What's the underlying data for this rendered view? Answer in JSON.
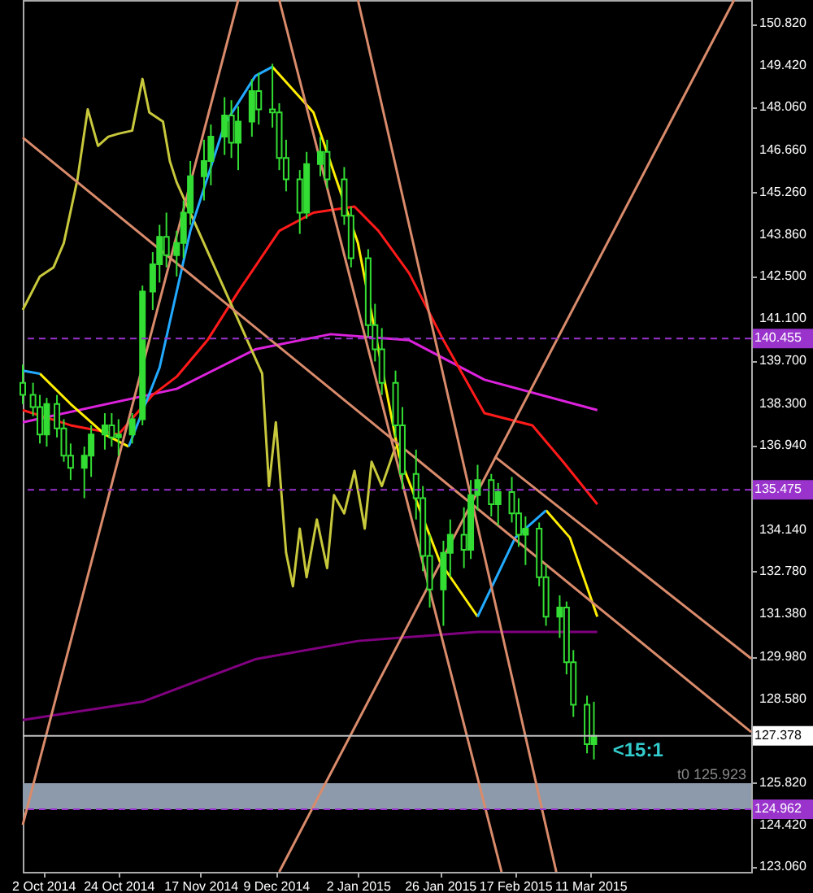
{
  "chart_data": {
    "type": "candlestick",
    "color": "#33dd33",
    "xlim": [
      "2014-09-26",
      "2015-04-27"
    ],
    "ylim": [
      122.9,
      151.6
    ],
    "xticks": [
      {
        "value": "2014-10-02",
        "label": "2 Oct 2014"
      },
      {
        "value": "2014-10-24",
        "label": "24 Oct 2014"
      },
      {
        "value": "2014-11-17",
        "label": "17 Nov 2014"
      },
      {
        "value": "2014-12-09",
        "label": "9 Dec 2014"
      },
      {
        "value": "2015-01-02",
        "label": "2 Jan 2015"
      },
      {
        "value": "2015-01-26",
        "label": "26 Jan 2015"
      },
      {
        "value": "2015-02-17",
        "label": "17 Feb 2015"
      },
      {
        "value": "2015-03-11",
        "label": "11 Mar 2015"
      }
    ],
    "yticks": [
      {
        "value": 150.82,
        "label": "150.820"
      },
      {
        "value": 149.42,
        "label": "149.420"
      },
      {
        "value": 148.06,
        "label": "148.060"
      },
      {
        "value": 146.66,
        "label": "146.660"
      },
      {
        "value": 145.26,
        "label": "145.260"
      },
      {
        "value": 143.86,
        "label": "143.860"
      },
      {
        "value": 142.5,
        "label": "142.500"
      },
      {
        "value": 141.1,
        "label": "141.100"
      },
      {
        "value": 139.7,
        "label": "139.700"
      },
      {
        "value": 138.3,
        "label": "138.300"
      },
      {
        "value": 136.94,
        "label": "136.940"
      },
      {
        "value": 134.14,
        "label": "134.140"
      },
      {
        "value": 132.78,
        "label": "132.780"
      },
      {
        "value": 131.38,
        "label": "131.380"
      },
      {
        "value": 129.98,
        "label": "129.980"
      },
      {
        "value": 128.58,
        "label": "128.580"
      },
      {
        "value": 125.82,
        "label": "125.820"
      },
      {
        "value": 124.42,
        "label": "124.420"
      },
      {
        "value": 123.06,
        "label": "123.060"
      }
    ],
    "x": [
      "2014-09-26",
      "2014-09-29",
      "2014-10-01",
      "2014-10-03",
      "2014-10-06",
      "2014-10-08",
      "2014-10-10",
      "2014-10-14",
      "2014-10-16",
      "2014-10-20",
      "2014-10-22",
      "2014-10-24",
      "2014-10-28",
      "2014-10-31",
      "2014-11-03",
      "2014-11-05",
      "2014-11-07",
      "2014-11-10",
      "2014-11-12",
      "2014-11-14",
      "2014-11-18",
      "2014-11-20",
      "2014-11-24",
      "2014-11-26",
      "2014-11-28",
      "2014-12-02",
      "2014-12-04",
      "2014-12-08",
      "2014-12-10",
      "2014-12-12",
      "2014-12-16",
      "2014-12-18",
      "2014-12-22",
      "2014-12-24",
      "2014-12-29",
      "2014-12-31",
      "2015-01-05",
      "2015-01-07",
      "2015-01-09",
      "2015-01-13",
      "2015-01-15",
      "2015-01-19",
      "2015-01-21",
      "2015-01-23",
      "2015-01-27",
      "2015-01-29",
      "2015-02-02",
      "2015-02-04",
      "2015-02-06",
      "2015-02-10",
      "2015-02-12",
      "2015-02-16",
      "2015-02-18",
      "2015-02-20",
      "2015-02-24",
      "2015-02-26",
      "2015-03-02",
      "2015-03-04",
      "2015-03-06",
      "2015-03-10",
      "2015-03-12"
    ],
    "ohlc": [
      [
        139.0,
        139.6,
        138.3,
        138.6
      ],
      [
        138.6,
        139.0,
        137.9,
        138.2
      ],
      [
        138.2,
        138.6,
        137.0,
        137.3
      ],
      [
        137.3,
        138.5,
        136.9,
        138.3
      ],
      [
        138.3,
        138.6,
        137.2,
        137.5
      ],
      [
        137.5,
        137.8,
        136.4,
        136.6
      ],
      [
        136.6,
        137.0,
        135.8,
        136.2
      ],
      [
        136.2,
        136.9,
        135.2,
        136.6
      ],
      [
        136.6,
        137.6,
        135.9,
        137.3
      ],
      [
        137.3,
        138.0,
        136.8,
        137.6
      ],
      [
        137.6,
        138.0,
        136.9,
        137.2
      ],
      [
        137.2,
        137.8,
        136.6,
        137.3
      ],
      [
        137.3,
        138.0,
        137.0,
        137.8
      ],
      [
        137.8,
        142.2,
        137.6,
        142.0
      ],
      [
        142.0,
        143.3,
        141.4,
        142.9
      ],
      [
        142.9,
        144.2,
        142.3,
        143.8
      ],
      [
        143.8,
        144.6,
        142.8,
        143.2
      ],
      [
        143.2,
        144.0,
        142.5,
        143.6
      ],
      [
        143.6,
        145.0,
        143.1,
        144.6
      ],
      [
        144.6,
        146.3,
        144.2,
        145.8
      ],
      [
        145.8,
        147.0,
        145.0,
        146.3
      ],
      [
        146.3,
        147.5,
        145.5,
        147.1
      ],
      [
        147.1,
        148.4,
        146.5,
        147.8
      ],
      [
        147.8,
        148.3,
        146.4,
        146.9
      ],
      [
        146.9,
        148.1,
        146.0,
        147.6
      ],
      [
        147.6,
        149.0,
        147.1,
        148.6
      ],
      [
        148.6,
        149.2,
        147.5,
        148.0
      ],
      [
        148.0,
        149.5,
        147.4,
        147.9
      ],
      [
        147.9,
        148.2,
        146.0,
        146.4
      ],
      [
        146.4,
        147.0,
        145.3,
        145.7
      ],
      [
        145.7,
        146.0,
        143.9,
        144.6
      ],
      [
        144.6,
        146.6,
        144.4,
        146.2
      ],
      [
        146.2,
        147.1,
        145.8,
        146.6
      ],
      [
        146.6,
        147.0,
        145.4,
        145.7
      ],
      [
        145.7,
        146.1,
        144.2,
        144.5
      ],
      [
        144.5,
        144.8,
        142.8,
        143.1
      ],
      [
        143.1,
        143.4,
        140.5,
        140.9
      ],
      [
        140.9,
        141.6,
        139.7,
        140.1
      ],
      [
        140.1,
        140.8,
        138.6,
        139.0
      ],
      [
        139.0,
        139.4,
        137.2,
        137.6
      ],
      [
        137.6,
        138.2,
        135.5,
        136.0
      ],
      [
        136.0,
        136.8,
        134.5,
        135.2
      ],
      [
        135.2,
        135.6,
        132.8,
        133.3
      ],
      [
        133.3,
        134.0,
        131.6,
        132.2
      ],
      [
        132.2,
        133.8,
        131.0,
        133.4
      ],
      [
        133.4,
        134.5,
        132.6,
        134.0
      ],
      [
        134.0,
        134.9,
        132.9,
        133.5
      ],
      [
        133.5,
        135.8,
        133.2,
        135.3
      ],
      [
        135.3,
        136.3,
        134.8,
        135.8
      ],
      [
        135.8,
        136.0,
        134.6,
        135.0
      ],
      [
        135.0,
        135.7,
        134.3,
        135.4
      ],
      [
        135.4,
        135.9,
        134.4,
        134.7
      ],
      [
        134.7,
        135.2,
        133.6,
        134.0
      ],
      [
        134.0,
        134.6,
        133.0,
        134.2
      ],
      [
        134.2,
        134.4,
        132.3,
        132.6
      ],
      [
        132.6,
        133.0,
        131.0,
        131.3
      ],
      [
        131.3,
        132.0,
        130.6,
        131.6
      ],
      [
        131.6,
        131.8,
        129.4,
        129.8
      ],
      [
        129.8,
        130.2,
        128.0,
        128.4
      ],
      [
        128.4,
        128.7,
        126.8,
        127.1
      ],
      [
        127.1,
        128.5,
        126.6,
        127.378
      ]
    ],
    "series": [
      {
        "type": "line",
        "color": "#800080",
        "x": [
          "2014-09-26",
          "2014-10-31",
          "2014-12-03",
          "2015-01-02",
          "2015-02-06",
          "2015-03-13"
        ],
        "values": [
          127.9,
          128.5,
          129.9,
          130.5,
          130.8,
          130.8
        ]
      },
      {
        "type": "line",
        "color": "#dd22dd",
        "x": [
          "2014-09-26",
          "2014-11-10",
          "2014-12-03",
          "2014-12-25",
          "2015-01-17",
          "2015-02-08",
          "2015-03-13"
        ],
        "values": [
          137.7,
          138.8,
          140.1,
          140.6,
          140.4,
          139.1,
          138.1
        ]
      },
      {
        "type": "line",
        "color": "#ff1a1a",
        "x": [
          "2014-09-26",
          "2014-10-10",
          "2014-10-24",
          "2014-11-03",
          "2014-11-10",
          "2014-11-19",
          "2014-11-28",
          "2014-12-10",
          "2014-12-20",
          "2015-01-01",
          "2015-01-08",
          "2015-01-17",
          "2015-01-27",
          "2015-02-08",
          "2015-02-22",
          "2015-03-03",
          "2015-03-13"
        ],
        "values": [
          138.1,
          137.6,
          137.3,
          138.6,
          139.2,
          140.4,
          142.0,
          144.0,
          144.6,
          144.8,
          144.0,
          142.6,
          140.4,
          138.0,
          137.6,
          136.4,
          135.0
        ]
      },
      {
        "type": "line",
        "color": "#c8c83c",
        "x": [
          "2014-09-26",
          "2014-10-01",
          "2014-10-05",
          "2014-10-08",
          "2014-10-12",
          "2014-10-15",
          "2014-10-18",
          "2014-10-21",
          "2014-10-24",
          "2014-10-28",
          "2014-10-31",
          "2014-11-02",
          "2014-11-06",
          "2014-11-08",
          "2014-11-10",
          "2014-12-05",
          "2014-12-07",
          "2014-12-09",
          "2014-12-12",
          "2014-12-14",
          "2014-12-16",
          "2014-12-18",
          "2014-12-21",
          "2014-12-24",
          "2014-12-26",
          "2014-12-29",
          "2015-01-01",
          "2015-01-04",
          "2015-01-06",
          "2015-01-09",
          "2015-01-13"
        ],
        "values": [
          141.4,
          142.5,
          142.8,
          143.6,
          145.7,
          148.0,
          146.8,
          147.1,
          147.2,
          147.3,
          149.0,
          147.9,
          147.6,
          146.3,
          145.6,
          139.3,
          135.6,
          137.7,
          133.4,
          132.3,
          134.2,
          132.6,
          134.5,
          132.9,
          135.3,
          134.7,
          136.1,
          134.2,
          136.4,
          135.6,
          136.9
        ]
      },
      {
        "type": "line",
        "color": "#ffee00",
        "x": [
          "2014-10-01",
          "2014-10-10",
          "2014-10-20",
          "2014-10-27"
        ],
        "values": [
          139.3,
          138.3,
          137.3,
          136.9
        ]
      },
      {
        "type": "line",
        "color": "#ffee00",
        "x": [
          "2014-12-08",
          "2014-12-20",
          "2015-01-02",
          "2015-01-14",
          "2015-01-26",
          "2015-02-06"
        ],
        "values": [
          149.4,
          147.9,
          143.6,
          136.6,
          133.1,
          131.3
        ]
      },
      {
        "type": "line",
        "color": "#ffee00",
        "x": [
          "2015-02-26",
          "2015-03-05",
          "2015-03-13"
        ],
        "values": [
          134.8,
          133.9,
          131.3
        ]
      },
      {
        "type": "line",
        "color": "#22aaff",
        "x": [
          "2014-09-26",
          "2014-10-01"
        ],
        "values": [
          139.4,
          139.3
        ]
      },
      {
        "type": "line",
        "color": "#22aaff",
        "x": [
          "2014-10-27",
          "2014-11-05",
          "2014-11-14",
          "2014-11-24",
          "2014-12-03",
          "2014-12-08"
        ],
        "values": [
          136.9,
          139.5,
          144.0,
          147.5,
          149.1,
          149.4
        ]
      },
      {
        "type": "line",
        "color": "#22aaff",
        "x": [
          "2015-02-06",
          "2015-02-17",
          "2015-02-26"
        ],
        "values": [
          131.3,
          133.9,
          134.8
        ]
      },
      {
        "type": "line",
        "color": "#d98b6b",
        "x": [
          "2014-09-26",
          "2015-04-27"
        ],
        "values": [
          147.07,
          127.5
        ]
      },
      {
        "type": "line",
        "color": "#d98b6b",
        "x": [
          "2015-02-11",
          "2015-04-27"
        ],
        "values": [
          136.57,
          129.92
        ]
      },
      {
        "type": "line",
        "color": "#d98b6b",
        "x": [
          "2014-09-26",
          "2014-11-28"
        ],
        "values": [
          124.45,
          151.6
        ]
      },
      {
        "type": "line",
        "color": "#d98b6b",
        "x": [
          "2014-12-10",
          "2015-04-22"
        ],
        "values": [
          122.9,
          151.6
        ]
      },
      {
        "type": "line",
        "color": "#d98b6b",
        "x": [
          "2014-12-10",
          "2015-02-13"
        ],
        "values": [
          151.6,
          122.9
        ]
      },
      {
        "type": "line",
        "color": "#d98b6b",
        "x": [
          "2015-01-02",
          "2015-03-01"
        ],
        "values": [
          151.6,
          122.9
        ]
      }
    ],
    "ref_lines": [
      {
        "axis": "y",
        "value": 140.455,
        "label": "140.455",
        "color": "#9933cc",
        "line_style": "dashed"
      },
      {
        "axis": "y",
        "value": 135.475,
        "label": "135.475",
        "color": "#9933cc",
        "line_style": "dashed"
      },
      {
        "axis": "y",
        "value": 127.378,
        "label": "127.378",
        "color": "#c0c0c0",
        "line_style": "solid"
      },
      {
        "axis": "y",
        "value": 124.962,
        "label": "124.962",
        "color": "#9933cc",
        "line_style": "dashed"
      }
    ],
    "bands": [
      {
        "axis": "y",
        "from": 124.962,
        "to": 125.82,
        "color": "#8c9aab"
      }
    ],
    "annotations": [
      "<15:1",
      "t0 125.923"
    ]
  }
}
